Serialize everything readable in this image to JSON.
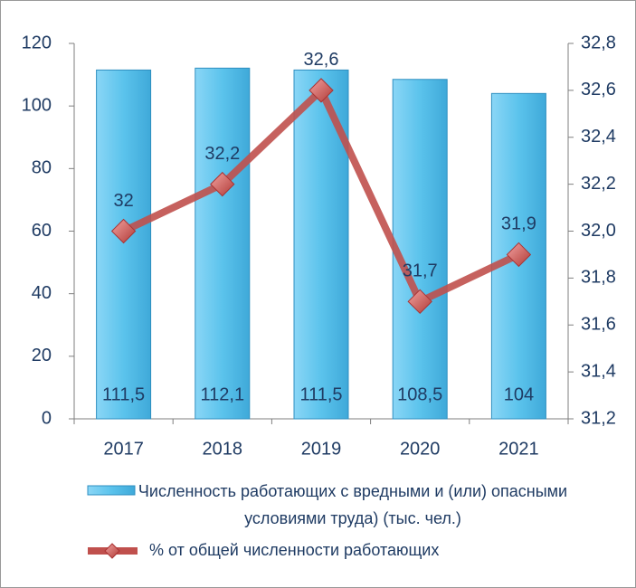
{
  "chart_data": {
    "type": "combo",
    "categories": [
      "2017",
      "2018",
      "2019",
      "2020",
      "2021"
    ],
    "series": [
      {
        "name": "Численность работающих с вредными и (или) опасными условиями труда) (тыс. чел.)",
        "type": "bar",
        "color": "#5bc3ec",
        "values": [
          111.5,
          112.1,
          111.5,
          108.5,
          104
        ],
        "value_labels": [
          "111,5",
          "112,1",
          "111,5",
          "108,5",
          "104"
        ]
      },
      {
        "name": "% от общей численности работающих",
        "type": "line",
        "axis": "y2",
        "color": "#c0504d",
        "values": [
          32,
          32.2,
          32.6,
          31.7,
          31.9
        ],
        "value_labels": [
          "32",
          "32,2",
          "32,6",
          "31,7",
          "31,9"
        ]
      }
    ],
    "ylim": [
      0,
      120
    ],
    "yticks": [
      0,
      20,
      40,
      60,
      80,
      100,
      120
    ],
    "y2lim": [
      31.2,
      32.8
    ],
    "y2ticks": [
      {
        "value": 31.2,
        "label": "31,2"
      },
      {
        "value": 31.4,
        "label": "31,4"
      },
      {
        "value": 31.6,
        "label": "31,6"
      },
      {
        "value": 31.8,
        "label": "31,8"
      },
      {
        "value": 32.0,
        "label": "32,0"
      },
      {
        "value": 32.2,
        "label": "32,2"
      },
      {
        "value": 32.4,
        "label": "32,4"
      },
      {
        "value": 32.6,
        "label": "32,6"
      },
      {
        "value": 32.8,
        "label": "32,8"
      }
    ],
    "grid": false,
    "legend": "bottom"
  }
}
